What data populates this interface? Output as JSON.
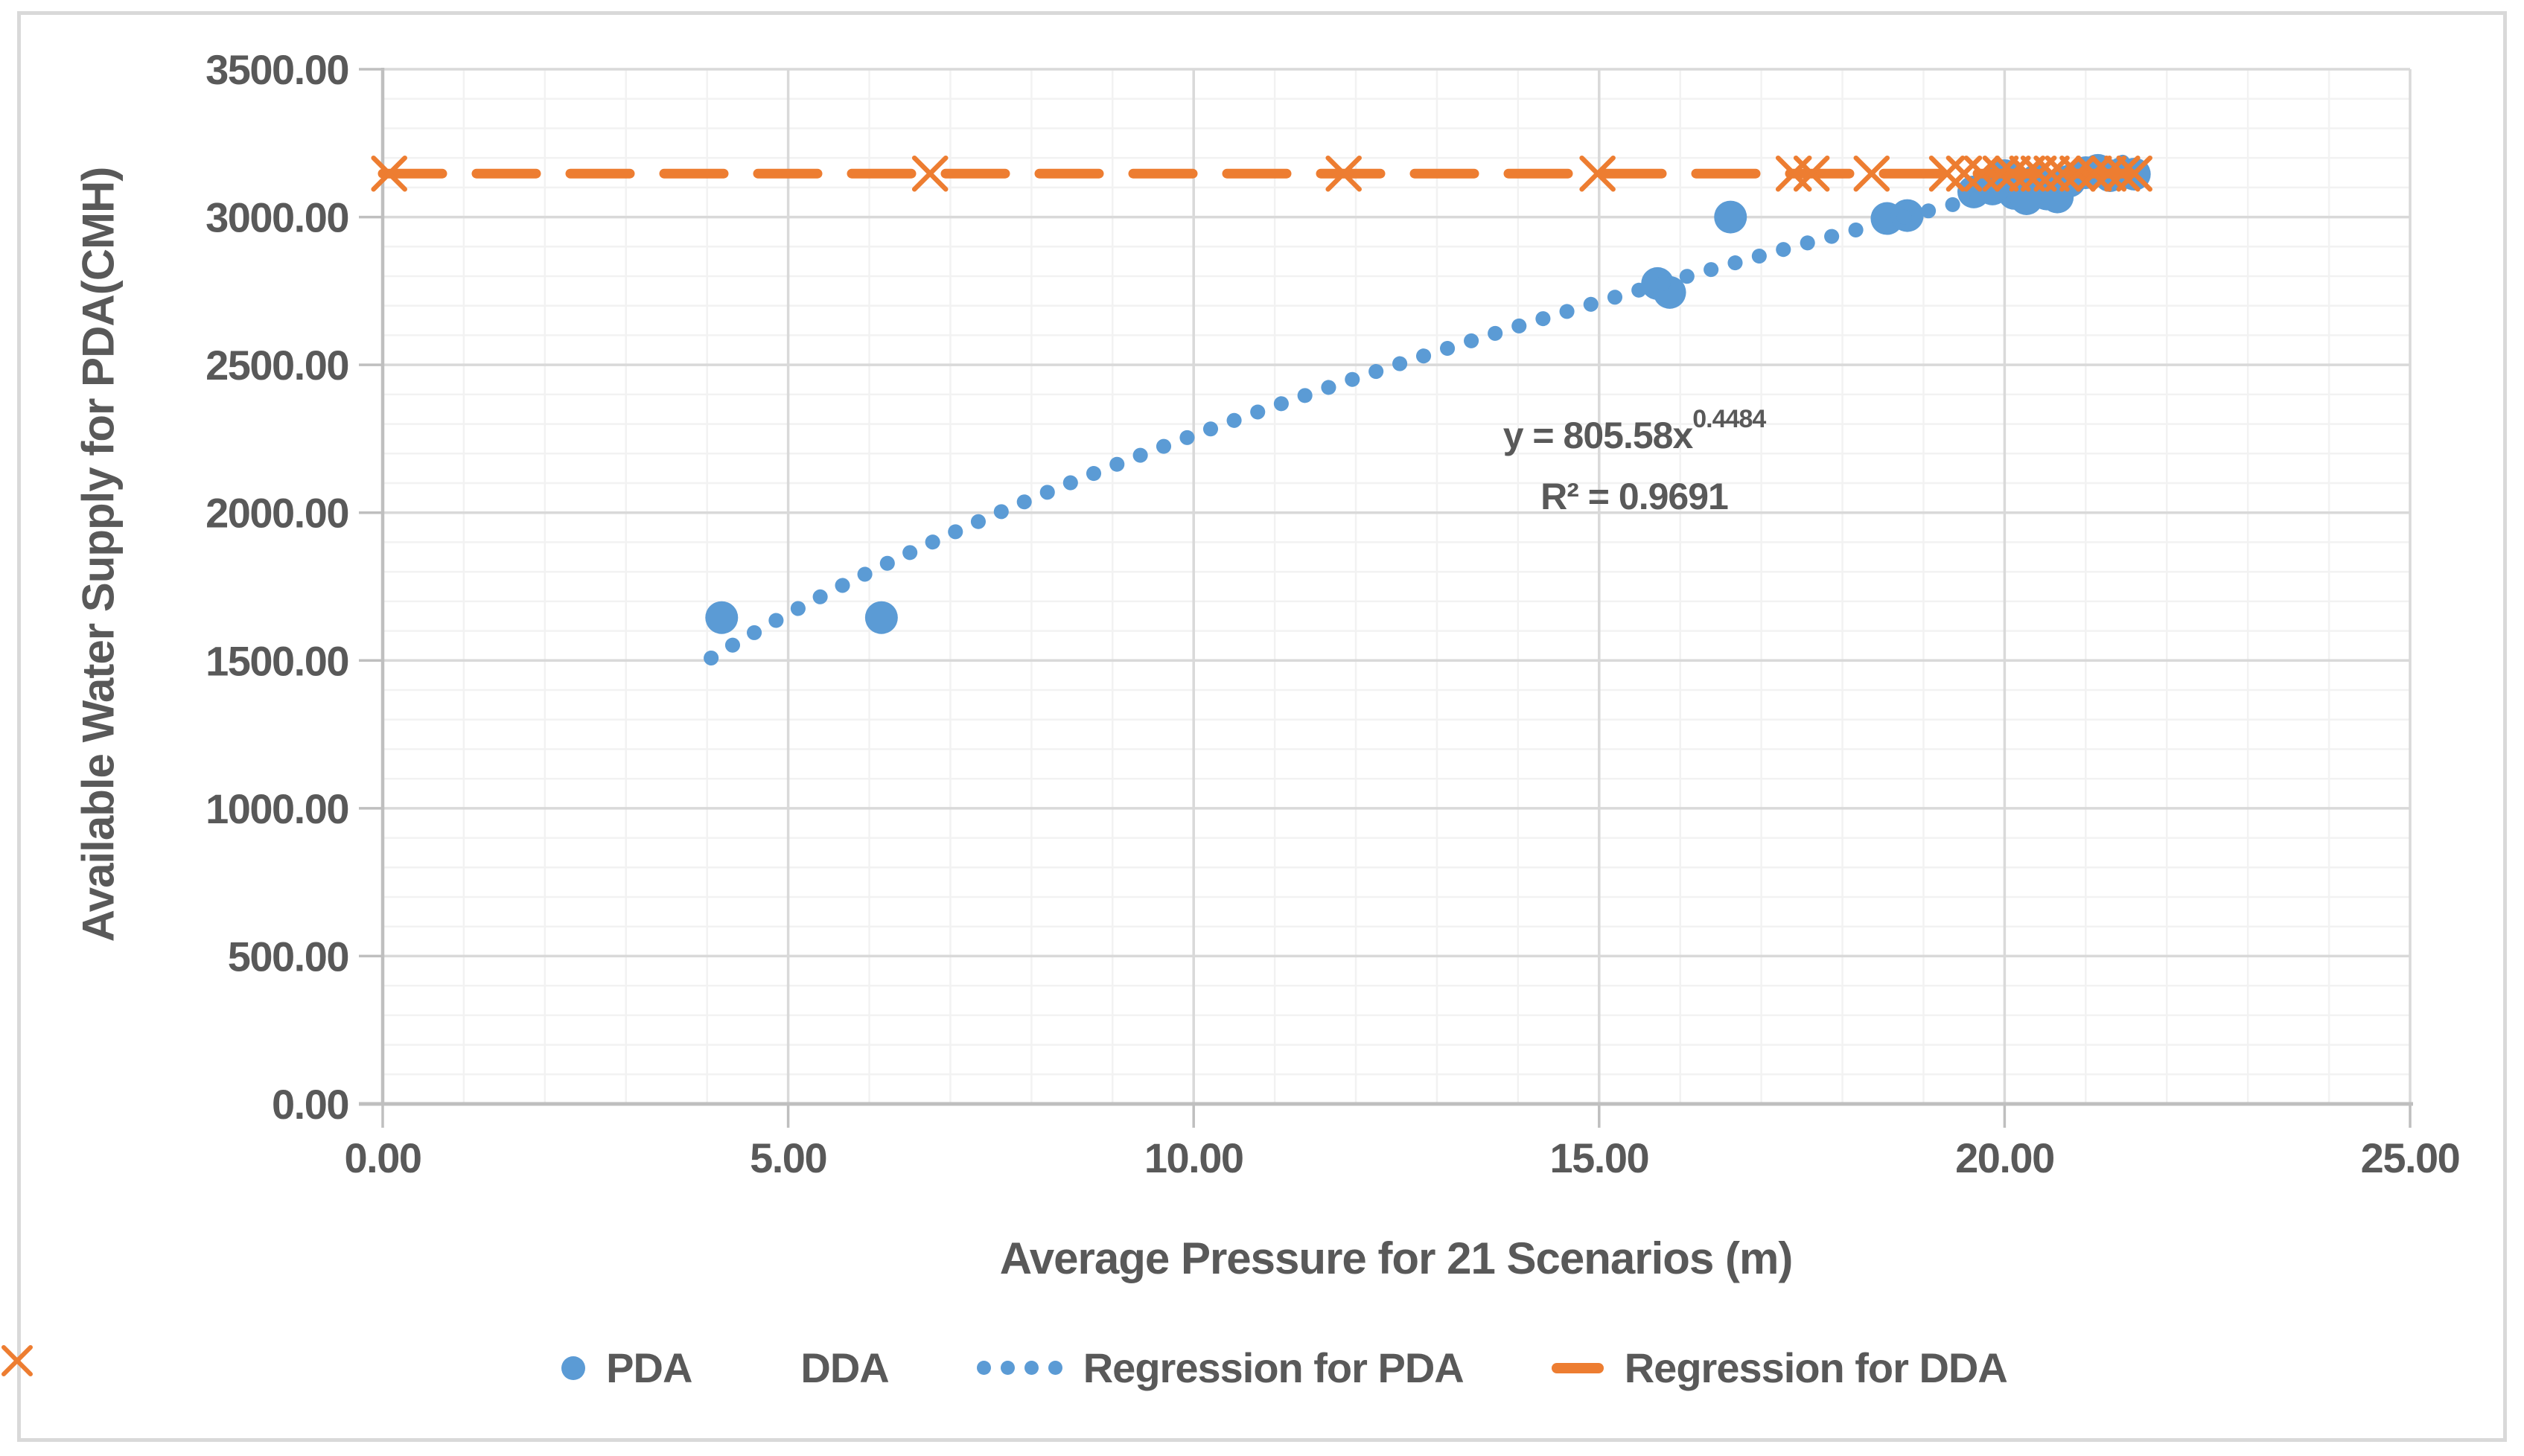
{
  "chart_data": {
    "type": "scatter",
    "title": "",
    "xlabel": "Average Pressure for 21 Scenarios (m)",
    "ylabel": "Available Water Supply for PDA(CMH)",
    "xlim": [
      0,
      25
    ],
    "ylim": [
      0,
      3500
    ],
    "grid": "major-and-minor",
    "x_minor_unit": 1,
    "y_minor_unit": 100,
    "legend_position": "bottom",
    "x_ticks": [
      {
        "value": 0,
        "label": "0.00"
      },
      {
        "value": 5,
        "label": "5.00"
      },
      {
        "value": 10,
        "label": "10.00"
      },
      {
        "value": 15,
        "label": "15.00"
      },
      {
        "value": 20,
        "label": "20.00"
      },
      {
        "value": 25,
        "label": "25.00"
      }
    ],
    "y_ticks": [
      {
        "value": 0,
        "label": "0.00"
      },
      {
        "value": 500,
        "label": "500.00"
      },
      {
        "value": 1000,
        "label": "1000.00"
      },
      {
        "value": 1500,
        "label": "1500.00"
      },
      {
        "value": 2000,
        "label": "2000.00"
      },
      {
        "value": 2500,
        "label": "2500.00"
      },
      {
        "value": 3000,
        "label": "3000.00"
      },
      {
        "value": 3500,
        "label": "3500.00"
      }
    ],
    "series": [
      {
        "name": "PDA",
        "kind": "scatter",
        "marker": "circle",
        "color": "#5B9BD5",
        "points": [
          [
            4.18,
            1645
          ],
          [
            6.15,
            1645
          ],
          [
            15.72,
            2775
          ],
          [
            15.87,
            2745
          ],
          [
            16.62,
            3000
          ],
          [
            18.55,
            2995
          ],
          [
            18.8,
            3005
          ],
          [
            19.62,
            3085
          ],
          [
            19.85,
            3095
          ],
          [
            20.0,
            3140
          ],
          [
            20.12,
            3080
          ],
          [
            20.27,
            3062
          ],
          [
            20.4,
            3125
          ],
          [
            20.52,
            3078
          ],
          [
            20.65,
            3068
          ],
          [
            20.8,
            3122
          ],
          [
            21.0,
            3150
          ],
          [
            21.15,
            3158
          ],
          [
            21.3,
            3140
          ],
          [
            21.45,
            3148
          ],
          [
            21.6,
            3145
          ]
        ]
      },
      {
        "name": "DDA",
        "kind": "scatter",
        "marker": "x",
        "color": "#ED7D31",
        "constant_y": 3147,
        "points": [
          [
            0.08,
            3147
          ],
          [
            6.75,
            3147
          ],
          [
            11.85,
            3147
          ],
          [
            14.98,
            3147
          ],
          [
            17.4,
            3147
          ],
          [
            17.62,
            3147
          ],
          [
            18.36,
            3147
          ],
          [
            19.29,
            3147
          ],
          [
            19.5,
            3147
          ],
          [
            19.72,
            3147
          ],
          [
            19.95,
            3147
          ],
          [
            20.1,
            3147
          ],
          [
            20.28,
            3147
          ],
          [
            20.42,
            3147
          ],
          [
            20.58,
            3147
          ],
          [
            20.72,
            3147
          ],
          [
            20.9,
            3147
          ],
          [
            21.1,
            3147
          ],
          [
            21.28,
            3147
          ],
          [
            21.45,
            3147
          ],
          [
            21.6,
            3147
          ]
        ]
      },
      {
        "name": "Regression for PDA",
        "kind": "trendline-power",
        "style": "dotted",
        "color": "#5B9BD5",
        "coefficient": 805.58,
        "exponent": 0.4484,
        "x_range": [
          4.05,
          21.7
        ]
      },
      {
        "name": "Regression for DDA",
        "kind": "trendline-constant",
        "style": "dashed",
        "color": "#ED7D31",
        "y": 3147,
        "x_range": [
          0,
          21.7
        ]
      }
    ],
    "annotation": {
      "equation_prefix": "y = 805.58x",
      "equation_exponent": "0.4484",
      "r_squared": "R² = 0.9691"
    }
  },
  "colors": {
    "pda": "#5B9BD5",
    "dda": "#ED7D31",
    "text": "#595959",
    "gridline_major": "#D9D9D9",
    "gridline_minor": "#F2F2F2",
    "axis_line": "#BFBFBF",
    "chart_border": "#D9D9D9"
  }
}
